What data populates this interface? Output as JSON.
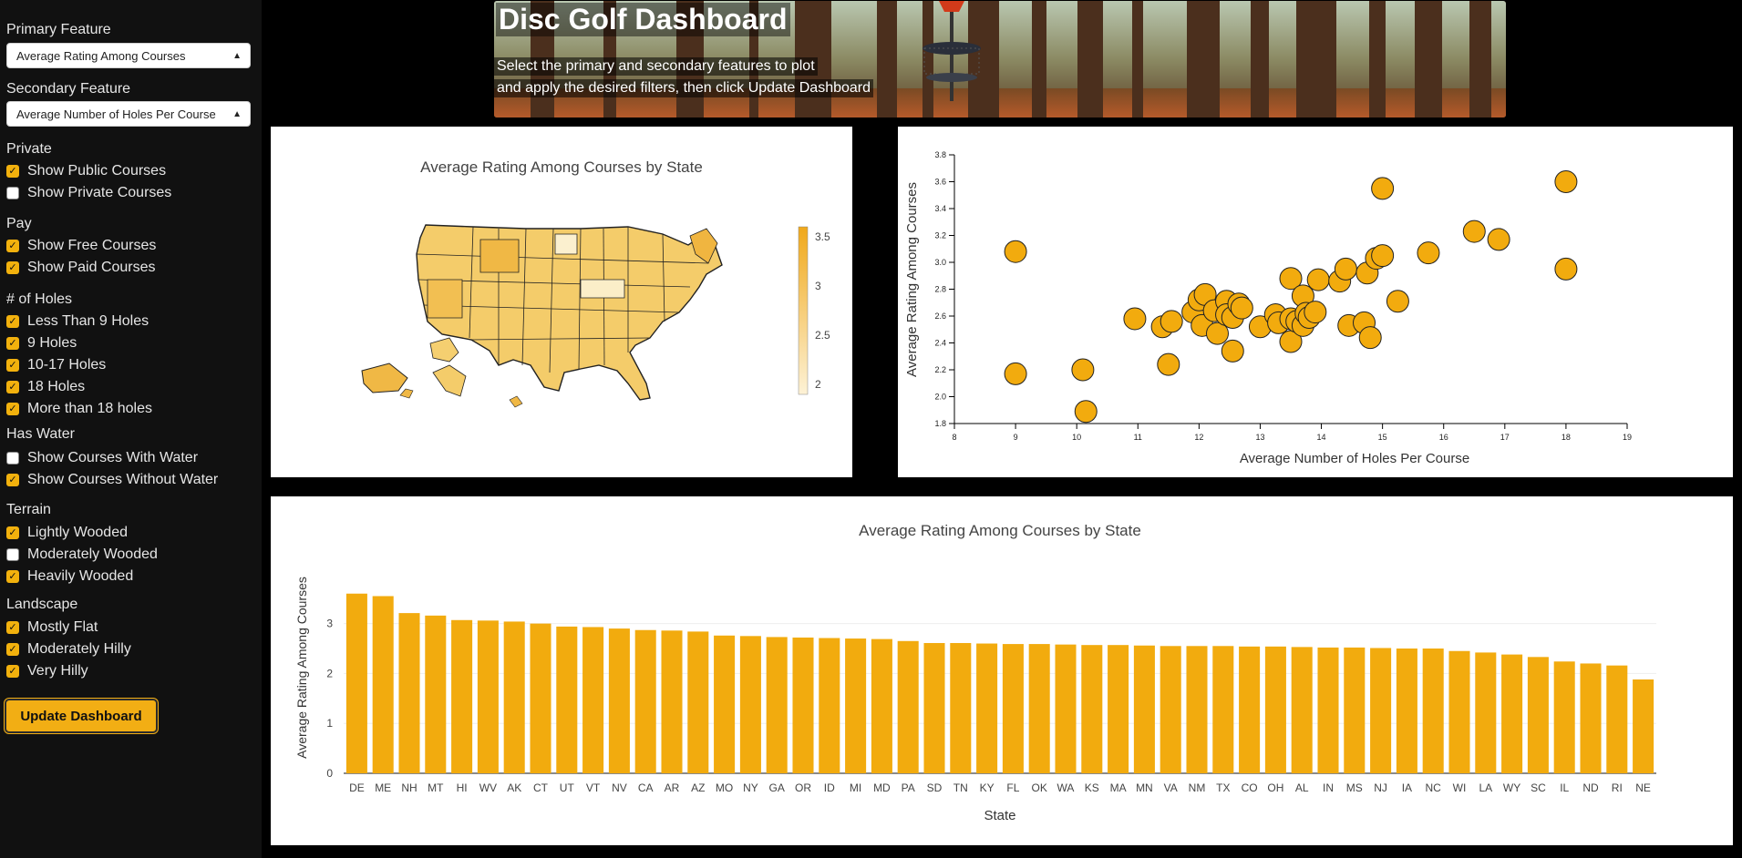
{
  "sidebar": {
    "primary_label": "Primary Feature",
    "primary_value": "Average Rating Among Courses",
    "secondary_label": "Secondary Feature",
    "secondary_value": "Average Number of Holes Per Course",
    "groups": [
      {
        "label": "Private",
        "options": [
          {
            "label": "Show Public Courses",
            "checked": true
          },
          {
            "label": "Show Private Courses",
            "checked": false
          }
        ]
      },
      {
        "label": "Pay",
        "options": [
          {
            "label": "Show Free Courses",
            "checked": true
          },
          {
            "label": "Show Paid Courses",
            "checked": true
          }
        ]
      },
      {
        "label": "# of Holes",
        "options": [
          {
            "label": "Less Than 9 Holes",
            "checked": true
          },
          {
            "label": "9 Holes",
            "checked": true
          },
          {
            "label": "10-17 Holes",
            "checked": true
          },
          {
            "label": "18 Holes",
            "checked": true
          },
          {
            "label": "More than 18 holes",
            "checked": true
          }
        ]
      },
      {
        "label": "Has Water",
        "options": [
          {
            "label": "Show Courses With Water",
            "checked": false
          },
          {
            "label": "Show Courses Without Water",
            "checked": true
          }
        ]
      },
      {
        "label": "Terrain",
        "options": [
          {
            "label": "Lightly Wooded",
            "checked": true
          },
          {
            "label": "Moderately Wooded",
            "checked": false
          },
          {
            "label": "Heavily Wooded",
            "checked": true
          }
        ]
      },
      {
        "label": "Landscape",
        "options": [
          {
            "label": "Mostly Flat",
            "checked": true
          },
          {
            "label": "Moderately Hilly",
            "checked": true
          },
          {
            "label": "Very Hilly",
            "checked": true
          }
        ]
      }
    ],
    "update_button": "Update Dashboard"
  },
  "banner": {
    "title": "Disc Golf Dashboard",
    "subtitle_line1": "Select the primary and secondary features to plot",
    "subtitle_line2": "and apply the desired filters, then click Update Dashboard"
  },
  "colors": {
    "accent": "#f2ab0e",
    "sidebar_bg": "#111111",
    "page_bg": "#000000"
  },
  "chart_data": [
    {
      "type": "choropleth",
      "title": "Average Rating Among Courses by State",
      "colorbar_ticks": [
        "3.5",
        "3",
        "2.5",
        "2"
      ],
      "colorbar_range": [
        1.9,
        3.6
      ]
    },
    {
      "type": "scatter",
      "xlabel": "Average Number of Holes Per Course",
      "ylabel": "Average Rating Among Courses",
      "xlim": [
        8,
        19
      ],
      "ylim": [
        1.8,
        3.8
      ],
      "xticks": [
        "8",
        "9",
        "10",
        "11",
        "12",
        "13",
        "14",
        "15",
        "16",
        "17",
        "18",
        "19"
      ],
      "yticks": [
        "1.8",
        "2.0",
        "2.2",
        "2.4",
        "2.6",
        "2.8",
        "3.0",
        "3.2",
        "3.4",
        "3.6",
        "3.8"
      ],
      "points": [
        [
          9.0,
          3.08
        ],
        [
          9.0,
          2.17
        ],
        [
          10.1,
          2.2
        ],
        [
          10.15,
          1.89
        ],
        [
          10.95,
          2.58
        ],
        [
          11.4,
          2.52
        ],
        [
          11.55,
          2.56
        ],
        [
          11.5,
          2.24
        ],
        [
          11.9,
          2.63
        ],
        [
          12.0,
          2.72
        ],
        [
          12.1,
          2.76
        ],
        [
          12.05,
          2.53
        ],
        [
          12.25,
          2.64
        ],
        [
          12.3,
          2.47
        ],
        [
          12.45,
          2.71
        ],
        [
          12.45,
          2.61
        ],
        [
          12.55,
          2.59
        ],
        [
          12.55,
          2.34
        ],
        [
          12.65,
          2.69
        ],
        [
          12.7,
          2.66
        ],
        [
          13.0,
          2.52
        ],
        [
          13.25,
          2.61
        ],
        [
          13.3,
          2.55
        ],
        [
          13.5,
          2.88
        ],
        [
          13.5,
          2.41
        ],
        [
          13.5,
          2.58
        ],
        [
          13.6,
          2.56
        ],
        [
          13.7,
          2.75
        ],
        [
          13.7,
          2.53
        ],
        [
          13.75,
          2.62
        ],
        [
          13.8,
          2.59
        ],
        [
          13.9,
          2.63
        ],
        [
          13.95,
          2.87
        ],
        [
          14.3,
          2.86
        ],
        [
          14.4,
          2.95
        ],
        [
          14.45,
          2.53
        ],
        [
          14.7,
          2.55
        ],
        [
          14.75,
          2.92
        ],
        [
          14.8,
          2.44
        ],
        [
          14.9,
          3.03
        ],
        [
          15.0,
          3.05
        ],
        [
          15.0,
          3.55
        ],
        [
          15.25,
          2.71
        ],
        [
          15.75,
          3.07
        ],
        [
          16.5,
          3.23
        ],
        [
          16.9,
          3.17
        ],
        [
          18.0,
          3.6
        ],
        [
          18.0,
          2.95
        ]
      ]
    },
    {
      "type": "bar",
      "title": "Average Rating Among Courses by State",
      "xlabel": "State",
      "ylabel": "Average Rating Among Courses",
      "ylim": [
        0,
        3.65
      ],
      "yticks": [
        "0",
        "1",
        "2",
        "3"
      ],
      "categories": [
        "DE",
        "ME",
        "NH",
        "MT",
        "HI",
        "WV",
        "AK",
        "CT",
        "UT",
        "VT",
        "NV",
        "CA",
        "AR",
        "AZ",
        "MO",
        "NY",
        "GA",
        "OR",
        "ID",
        "MI",
        "MD",
        "PA",
        "SD",
        "TN",
        "KY",
        "FL",
        "OK",
        "WA",
        "KS",
        "MA",
        "MN",
        "VA",
        "NM",
        "TX",
        "CO",
        "OH",
        "AL",
        "IN",
        "MS",
        "NJ",
        "IA",
        "NC",
        "WI",
        "LA",
        "WY",
        "SC",
        "IL",
        "ND",
        "RI",
        "NE"
      ],
      "values": [
        3.6,
        3.55,
        3.21,
        3.16,
        3.07,
        3.06,
        3.04,
        3.0,
        2.94,
        2.93,
        2.9,
        2.87,
        2.86,
        2.84,
        2.76,
        2.75,
        2.73,
        2.72,
        2.71,
        2.7,
        2.69,
        2.65,
        2.61,
        2.61,
        2.6,
        2.59,
        2.59,
        2.58,
        2.57,
        2.57,
        2.56,
        2.55,
        2.55,
        2.55,
        2.54,
        2.54,
        2.53,
        2.52,
        2.52,
        2.51,
        2.5,
        2.5,
        2.45,
        2.42,
        2.38,
        2.33,
        2.24,
        2.2,
        2.16,
        1.88
      ]
    }
  ]
}
